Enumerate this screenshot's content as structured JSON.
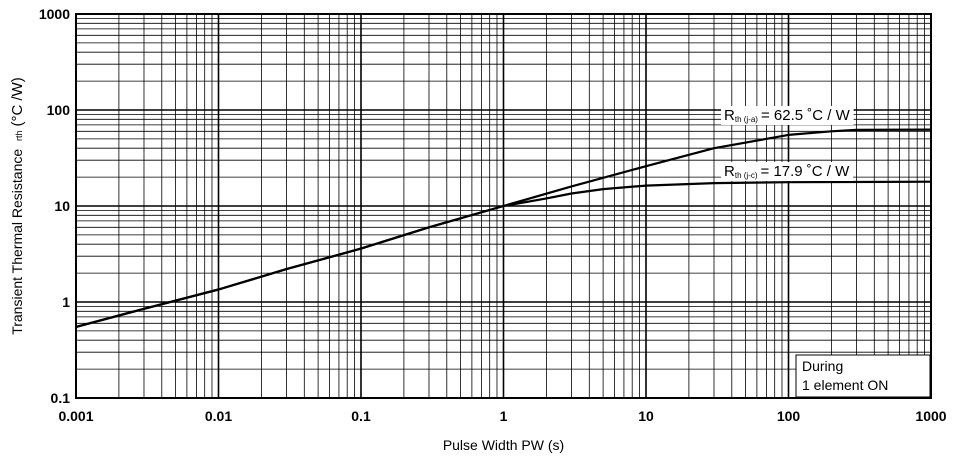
{
  "chart_data": {
    "type": "line",
    "title": "",
    "xlabel": "Pulse Width  PW (s)",
    "ylabel_main": "Transient Thermal Resistance",
    "ylabel_sub": "rth",
    "ylabel_unit": "(°C /W)",
    "x_scale": "log",
    "y_scale": "log",
    "xlim": [
      0.001,
      1000
    ],
    "ylim": [
      0.1,
      1000
    ],
    "grid": true,
    "x_ticks": [
      "0.001",
      "0.01",
      "0.1",
      "1",
      "10",
      "100",
      "1000"
    ],
    "y_ticks": [
      "0.1",
      "1",
      "10",
      "100",
      "1000"
    ],
    "series": [
      {
        "name": "Rth(j-a) = 62.5 °C / W",
        "x": [
          0.001,
          0.003,
          0.01,
          0.03,
          0.1,
          0.3,
          1,
          3,
          10,
          30,
          100,
          200,
          300,
          1000
        ],
        "y": [
          0.55,
          0.85,
          1.35,
          2.2,
          3.6,
          6.0,
          10.0,
          16.0,
          26.0,
          40.0,
          55.0,
          60.0,
          62.0,
          62.5
        ]
      },
      {
        "name": "Rth(j-c) = 17.9 °C / W",
        "x": [
          0.001,
          0.003,
          0.01,
          0.03,
          0.1,
          0.3,
          1,
          2,
          3,
          5,
          10,
          30,
          100,
          1000
        ],
        "y": [
          0.55,
          0.85,
          1.35,
          2.2,
          3.6,
          6.0,
          10.0,
          12.0,
          13.5,
          15.0,
          16.3,
          17.3,
          17.7,
          17.9
        ]
      }
    ],
    "labels": [
      {
        "main": "R",
        "sub": "th (j-a)",
        "value": "= 62.5 ˚C / W"
      },
      {
        "main": "R",
        "sub": "th (j-c)",
        "value": "= 17.9 ˚C / W"
      }
    ],
    "note_lines": [
      "During",
      "1 element ON"
    ]
  }
}
